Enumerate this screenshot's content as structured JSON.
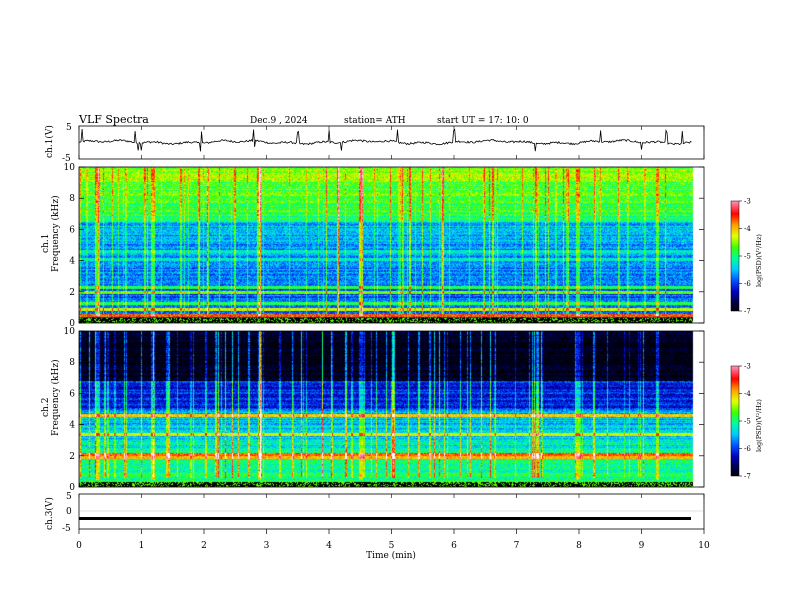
{
  "header": {
    "title": "VLF  Spectra",
    "date": "Dec.9  , 2024",
    "station": "station= ATH",
    "start": "start  UT  =    17: 10: 0"
  },
  "colors": {
    "ramp": [
      "#000000",
      "#000040",
      "#0000c0",
      "#0050ff",
      "#00c8ff",
      "#00ffa0",
      "#40ff00",
      "#e6ff00",
      "#ffa000",
      "#ff0000",
      "#ff80a0",
      "#ffffff"
    ]
  },
  "chart_data": [
    {
      "type": "line",
      "panel": "ch1-waveform",
      "ylabel": "ch.1(V)",
      "xlim": [
        0,
        10
      ],
      "ylim": [
        -5,
        5
      ],
      "yticks": [
        "5",
        "-5"
      ],
      "baseline_v": 0.1,
      "spike_times_min": [
        0.05,
        0.9,
        0.95,
        1.0,
        1.95,
        2.8,
        3.5,
        4.0,
        4.2,
        5.1,
        6.0,
        7.3,
        8.35,
        9.0,
        9.4,
        9.65
      ]
    },
    {
      "type": "heatmap",
      "panel": "ch1-spectrogram",
      "ylabel": "ch.1\nFrequency (kHz)",
      "xlim": [
        0,
        10
      ],
      "ylim": [
        0,
        10
      ],
      "yticks": [
        "0",
        "2",
        "4",
        "6",
        "8",
        "10"
      ],
      "data_end_min": 9.8,
      "colorbar": {
        "label": "log(PSD)(V²/Hz)",
        "range": [
          -7,
          -3
        ],
        "ticks": [
          "-3",
          "-4",
          "-5",
          "-6",
          "-7"
        ]
      },
      "bands_khz": [
        {
          "f": 0.2,
          "level": -3.5
        },
        {
          "f": 0.5,
          "level": -3.5
        },
        {
          "f": 0.9,
          "level": -4.2
        },
        {
          "f": 1.3,
          "level": -4.8
        },
        {
          "f": 2.0,
          "level": -4.5
        },
        {
          "f": 2.3,
          "level": -4.8
        },
        {
          "f": 4.1,
          "level": -5.2
        },
        {
          "f": 4.6,
          "level": -5.2
        }
      ]
    },
    {
      "type": "heatmap",
      "panel": "ch2-spectrogram",
      "ylabel": "ch.2\nFrequency (kHz)",
      "xlim": [
        0,
        10
      ],
      "ylim": [
        0,
        10
      ],
      "yticks": [
        "0",
        "2",
        "4",
        "6",
        "8",
        "10"
      ],
      "data_end_min": 9.8,
      "colorbar": {
        "label": "log(PSD)(V²/Hz)",
        "range": [
          -7,
          -3
        ],
        "ticks": [
          "-3",
          "-4",
          "-5",
          "-6",
          "-7"
        ]
      },
      "bands_khz": [
        {
          "f": 0.2,
          "level": -3.6
        },
        {
          "f": 1.9,
          "level": -3.8
        },
        {
          "f": 2.1,
          "level": -3.5
        },
        {
          "f": 3.4,
          "level": -4.2
        },
        {
          "f": 4.6,
          "level": -3.9
        }
      ]
    },
    {
      "type": "line",
      "panel": "ch3-waveform",
      "ylabel": "ch.3(V)",
      "xlim": [
        0,
        10
      ],
      "ylim": [
        -5,
        5
      ],
      "yticks": [
        "5",
        "0",
        "-5"
      ],
      "baseline_v": -2.0,
      "xlabel": "Time  (min)",
      "xticks": [
        "0",
        "1",
        "2",
        "3",
        "4",
        "5",
        "6",
        "7",
        "8",
        "9",
        "10"
      ]
    }
  ]
}
